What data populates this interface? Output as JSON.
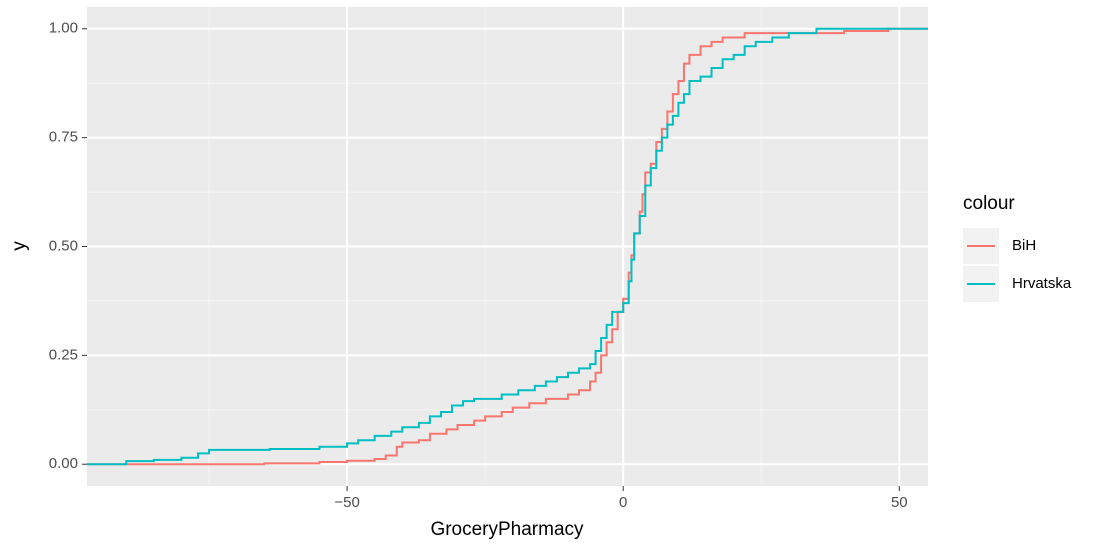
{
  "chart_data": {
    "type": "step",
    "xlabel": "GroceryPharmacy",
    "ylabel": "y",
    "xlim": [
      -97.1,
      55.2
    ],
    "ylim": [
      -0.05,
      1.05
    ],
    "xticks": [
      {
        "value": -50,
        "label": "−50"
      },
      0,
      50
    ],
    "yticks": [
      {
        "value": 0,
        "label": "0.00"
      },
      {
        "value": 0.25,
        "label": "0.25"
      },
      {
        "value": 0.5,
        "label": "0.50"
      },
      {
        "value": 0.75,
        "label": "0.75"
      },
      {
        "value": 1,
        "label": "1.00"
      }
    ],
    "grid": true,
    "legend_title": "colour",
    "legend_position": "right",
    "series": [
      {
        "name": "BiH",
        "color": "#F8766D",
        "x": [
          -65,
          -55,
          -50,
          -45,
          -43,
          -41,
          -40,
          -37,
          -35,
          -32,
          -30,
          -27,
          -25,
          -22,
          -20,
          -17,
          -14,
          -10,
          -8,
          -6,
          -5,
          -4,
          -3,
          -2,
          -1,
          0,
          1,
          1.5,
          2,
          3,
          3.5,
          4,
          5,
          6,
          7,
          8,
          9,
          10,
          11,
          12,
          14,
          16,
          18,
          22,
          40,
          48
        ],
        "values": [
          0.002,
          0.005,
          0.008,
          0.012,
          0.02,
          0.04,
          0.05,
          0.055,
          0.07,
          0.08,
          0.09,
          0.1,
          0.11,
          0.12,
          0.13,
          0.14,
          0.15,
          0.16,
          0.17,
          0.19,
          0.21,
          0.25,
          0.28,
          0.31,
          0.35,
          0.38,
          0.44,
          0.48,
          0.53,
          0.58,
          0.62,
          0.67,
          0.69,
          0.74,
          0.77,
          0.81,
          0.85,
          0.88,
          0.92,
          0.94,
          0.96,
          0.97,
          0.98,
          0.99,
          0.995,
          1
        ]
      },
      {
        "name": "Hrvatska",
        "color": "#00BFC4",
        "x": [
          -90,
          -85,
          -80,
          -77,
          -75,
          -64,
          -55,
          -50,
          -48,
          -45,
          -42,
          -40,
          -37,
          -35,
          -33,
          -31,
          -29,
          -27,
          -22,
          -19,
          -16,
          -14,
          -12,
          -10,
          -8,
          -6,
          -5,
          -4,
          -3,
          -2,
          0,
          1,
          1.5,
          2,
          3,
          4,
          5,
          6,
          7,
          8,
          9,
          10,
          11,
          12,
          14,
          16,
          18,
          20,
          22,
          24,
          27,
          30,
          35
        ],
        "values": [
          0.007,
          0.01,
          0.015,
          0.025,
          0.033,
          0.035,
          0.04,
          0.048,
          0.055,
          0.065,
          0.075,
          0.085,
          0.095,
          0.11,
          0.12,
          0.135,
          0.145,
          0.15,
          0.16,
          0.17,
          0.18,
          0.19,
          0.2,
          0.21,
          0.22,
          0.23,
          0.26,
          0.29,
          0.32,
          0.35,
          0.37,
          0.42,
          0.47,
          0.53,
          0.57,
          0.64,
          0.68,
          0.72,
          0.75,
          0.78,
          0.8,
          0.83,
          0.85,
          0.88,
          0.89,
          0.91,
          0.93,
          0.94,
          0.96,
          0.97,
          0.98,
          0.99,
          1
        ]
      }
    ]
  }
}
